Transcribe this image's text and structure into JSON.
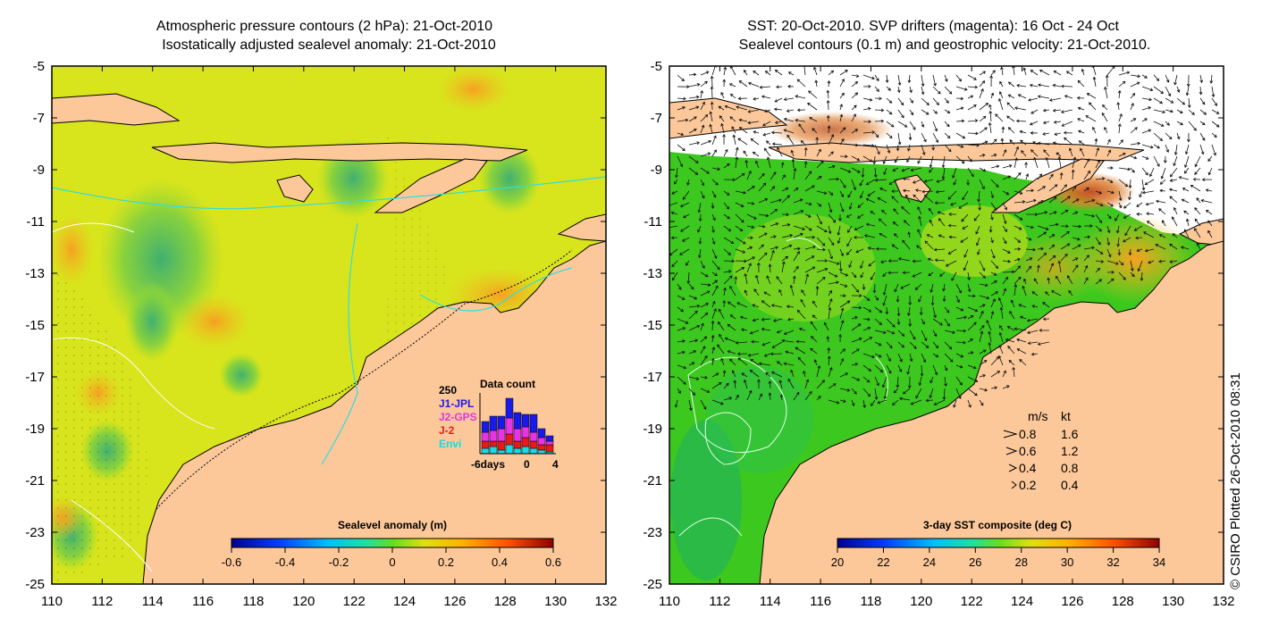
{
  "left_panel": {
    "title_line1": "Atmospheric pressure contours (2 hPa): 21-Oct-2010",
    "title_line2": "Isostatically adjusted sealevel anomaly: 21-Oct-2010",
    "colorbar": {
      "title": "Sealevel anomaly (m)",
      "min": -0.6,
      "max": 0.6,
      "tick_labels": [
        "-0.6",
        "-0.4",
        "-0.2",
        "0",
        "0.2",
        "0.4",
        "0.6"
      ]
    },
    "data_count": {
      "title": "Data count",
      "ymax_label": "250",
      "missions": [
        {
          "name": "J1-JPL",
          "color": "#1a1ae6"
        },
        {
          "name": "J2-GPS",
          "color": "#e633e6"
        },
        {
          "name": "J-2",
          "color": "#e61a1a"
        },
        {
          "name": "Envi",
          "color": "#1ad9e6"
        }
      ],
      "x_labels": [
        "-6days",
        "0",
        "4"
      ]
    }
  },
  "right_panel": {
    "title_line1": "SST: 20-Oct-2010. SVP drifters (magenta): 16 Oct - 24 Oct",
    "title_line2": "Sealevel contours (0.1 m) and geostrophic velocity: 21-Oct-2010.",
    "colorbar": {
      "title": "3-day SST composite (deg C)",
      "min": 20,
      "max": 34,
      "tick_labels": [
        "20",
        "22",
        "24",
        "26",
        "28",
        "30",
        "32",
        "34"
      ]
    },
    "velocity_legend": {
      "header_ms": "m/s",
      "header_kt": "kt",
      "rows": [
        {
          "ms": "0.8",
          "kt": "1.6"
        },
        {
          "ms": "0.6",
          "kt": "1.2"
        },
        {
          "ms": "0.4",
          "kt": "0.8"
        },
        {
          "ms": "0.2",
          "kt": "0.4"
        }
      ]
    }
  },
  "axes": {
    "lon_ticks": [
      "110",
      "112",
      "114",
      "116",
      "118",
      "120",
      "122",
      "124",
      "126",
      "128",
      "130",
      "132"
    ],
    "lat_ticks": [
      "-5",
      "-7",
      "-9",
      "-11",
      "-13",
      "-15",
      "-17",
      "-19",
      "-21",
      "-23",
      "-25"
    ]
  },
  "credit": "© CSIRO Plotted 26-Oct-2010 08:31",
  "colors": {
    "land": "#fcc89a",
    "ocean_left_base": "#d8e41c",
    "ocean_right_base": "#3cc81e",
    "contour_cyan": "#33dddd"
  }
}
